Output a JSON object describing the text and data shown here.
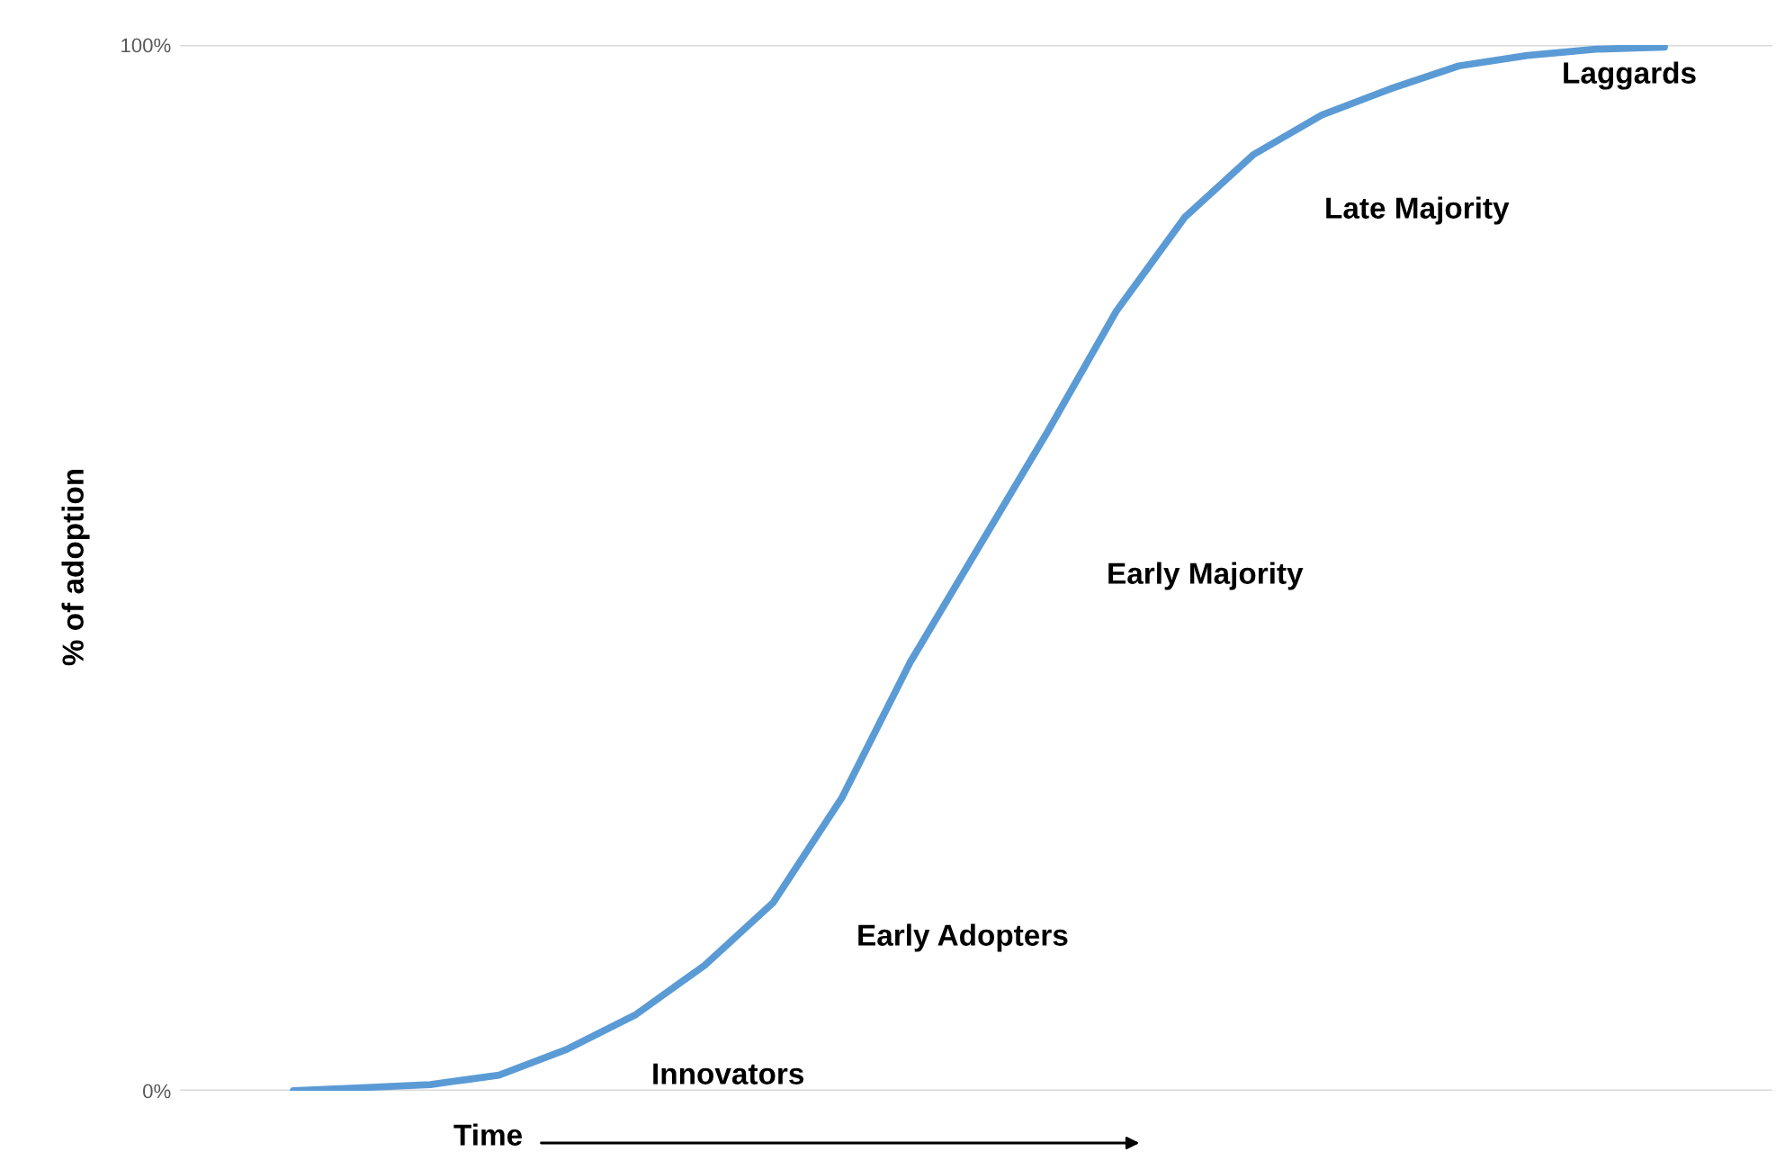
{
  "chart_data": {
    "type": "line",
    "categories": [
      null,
      null,
      null,
      null,
      null,
      null,
      null,
      null,
      null,
      null,
      null,
      null,
      null,
      null,
      null,
      null,
      null,
      null,
      null,
      null,
      null
    ],
    "series": [
      {
        "color": "#5b9bd5",
        "values": [
          0,
          0.3,
          0.6,
          1.5,
          4.0,
          7.3,
          12,
          18,
          28,
          41,
          52,
          63,
          74.5,
          83.5,
          89.5,
          93.3,
          95.8,
          98,
          99,
          99.6,
          99.8
        ]
      }
    ],
    "ylim": [
      0,
      100
    ],
    "yticks": [
      {
        "value": 0,
        "label": "0%"
      },
      {
        "value": 100,
        "label": "100%"
      }
    ],
    "ylabel": "% of adoption",
    "xlabel": "Time",
    "grid": "y",
    "tick_labels": "y",
    "marker": "none",
    "line_style": "solid",
    "annotations": [
      "Innovators",
      "Early Adopters",
      "Early Majority",
      "Late Majority",
      "Laggards"
    ]
  }
}
